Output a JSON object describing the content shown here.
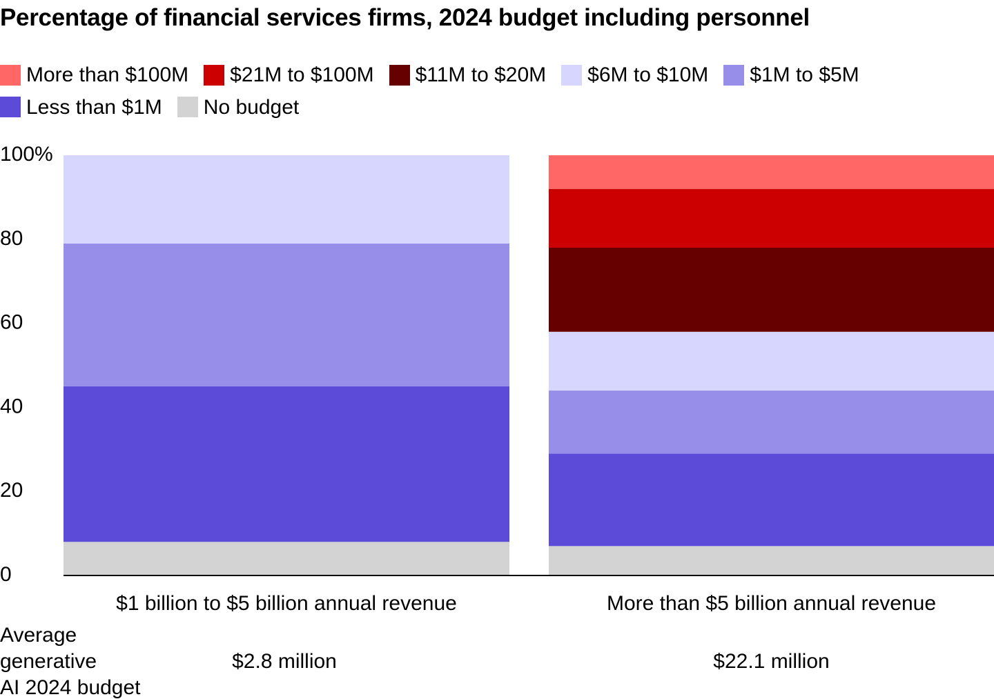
{
  "chart_data": {
    "type": "bar",
    "stacked": true,
    "title": "Percentage of financial services firms, 2024 budget including personnel",
    "categories": [
      "$1 billion to $5 billion annual revenue",
      "More than $5 billion annual revenue"
    ],
    "series": [
      {
        "name": "No budget",
        "color": "#d3d3d3",
        "values": [
          8,
          7
        ]
      },
      {
        "name": "Less than $1M",
        "color": "#5c4ad8",
        "values": [
          37,
          22
        ]
      },
      {
        "name": "$1M to $5M",
        "color": "#978eea",
        "values": [
          34,
          15
        ]
      },
      {
        "name": "$6M to $10M",
        "color": "#d6d6ff",
        "values": [
          21,
          14
        ]
      },
      {
        "name": "$11M to $20M",
        "color": "#660000",
        "values": [
          0,
          20
        ]
      },
      {
        "name": "$21M to $100M",
        "color": "#cc0000",
        "values": [
          0,
          14
        ]
      },
      {
        "name": "More than $100M",
        "color": "#ff6666",
        "values": [
          0,
          8
        ]
      }
    ],
    "legend_order": [
      "More than $100M",
      "$21M to $100M",
      "$11M to $20M",
      "$6M to $10M",
      "$1M to $5M",
      "Less than $1M",
      "No budget"
    ],
    "ylim": [
      0,
      100
    ],
    "yticks": [
      "0",
      "20",
      "40",
      "60",
      "80",
      "100%"
    ],
    "ytick_values": [
      0,
      20,
      40,
      60,
      80,
      100
    ],
    "grid": false,
    "legend_position": "top",
    "footer": {
      "label": "Average generative AI 2024 budget",
      "label_lines": [
        "Average",
        "generative",
        "AI 2024 budget"
      ],
      "values": [
        "$2.8 million",
        "$22.1 million"
      ]
    }
  }
}
